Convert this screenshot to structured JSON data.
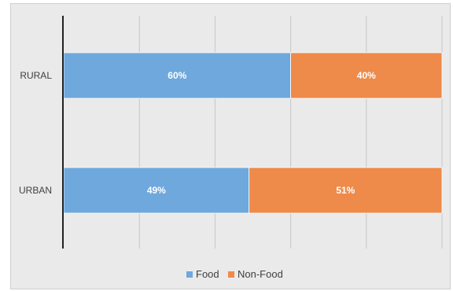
{
  "chart_data": {
    "type": "bar",
    "orientation": "horizontal",
    "stacked": "percent",
    "categories": [
      "RURAL",
      "URBAN"
    ],
    "series": [
      {
        "name": "Food",
        "values": [
          60,
          49
        ],
        "labels": [
          "60%",
          "49%"
        ],
        "color": "#6fa8dc"
      },
      {
        "name": "Non-Food",
        "values": [
          40,
          51
        ],
        "labels": [
          "40%",
          "51%"
        ],
        "color": "#ee8a4a"
      }
    ],
    "xlim": [
      0,
      100
    ],
    "grid": true,
    "legend": "bottom-center",
    "title": "",
    "xlabel": "",
    "ylabel": ""
  }
}
